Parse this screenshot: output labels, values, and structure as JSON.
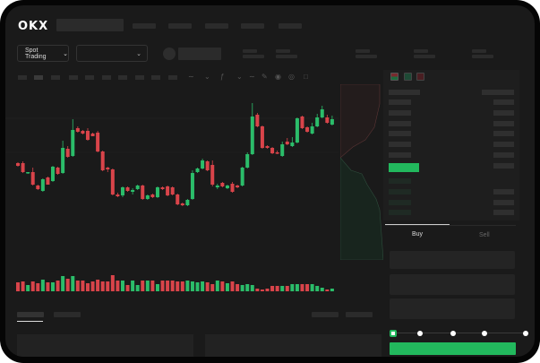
{
  "header": {
    "logo": "OKX"
  },
  "toolbar": {
    "market_select_label": "Spot Trading",
    "chevron": "chevron-down-icon"
  },
  "order_book": {
    "view_icons": [
      "orderbook-both-icon",
      "orderbook-bids-icon",
      "orderbook-asks-icon"
    ]
  },
  "trade_panel": {
    "tabs": [
      {
        "label": "Buy",
        "active": true
      },
      {
        "label": "Sell",
        "active": false
      }
    ],
    "slider_steps": 5,
    "slider_value": 0
  },
  "colors": {
    "up": "#2bbd6a",
    "down": "#d9444a",
    "accent": "#22b85d",
    "background": "#1a1a1a"
  },
  "chart_data": {
    "type": "candlestick",
    "candles": [
      [
        68,
        69,
        64,
        65
      ],
      [
        68,
        70,
        57,
        58
      ],
      [
        57,
        58,
        56,
        58
      ],
      [
        58,
        63,
        43,
        44
      ],
      [
        43,
        44,
        38,
        39
      ],
      [
        37,
        51,
        36,
        50
      ],
      [
        52,
        53,
        44,
        44
      ],
      [
        48,
        65,
        47,
        64
      ],
      [
        63,
        64,
        55,
        56
      ],
      [
        57,
        93,
        56,
        85
      ],
      [
        84,
        87,
        74,
        75
      ],
      [
        76,
        117,
        75,
        105
      ],
      [
        107,
        109,
        102,
        103
      ],
      [
        104,
        105,
        100,
        101
      ],
      [
        104,
        107,
        93,
        94
      ],
      [
        101,
        102,
        98,
        98
      ],
      [
        102,
        104,
        80,
        81
      ],
      [
        81,
        82,
        59,
        60
      ],
      [
        63,
        64,
        58,
        61
      ],
      [
        61,
        62,
        32,
        33
      ],
      [
        33,
        35,
        30,
        31
      ],
      [
        32,
        42,
        30,
        41
      ],
      [
        41,
        42,
        36,
        37
      ],
      [
        36,
        40,
        33,
        38
      ],
      [
        39,
        44,
        38,
        43
      ],
      [
        43,
        44,
        27,
        28
      ],
      [
        28,
        33,
        27,
        32
      ],
      [
        33,
        34,
        29,
        30
      ],
      [
        30,
        42,
        29,
        41
      ],
      [
        41,
        42,
        38,
        39
      ],
      [
        42,
        43,
        31,
        32
      ],
      [
        41,
        42,
        32,
        33
      ],
      [
        33,
        34,
        21,
        22
      ],
      [
        23,
        24,
        20,
        21
      ],
      [
        21,
        28,
        20,
        27
      ],
      [
        28,
        60,
        27,
        57
      ],
      [
        58,
        63,
        57,
        62
      ],
      [
        62,
        73,
        61,
        71
      ],
      [
        70,
        71,
        59,
        60
      ],
      [
        66,
        71,
        42,
        44
      ],
      [
        41,
        45,
        39,
        43
      ],
      [
        46,
        47,
        41,
        42
      ],
      [
        40,
        44,
        39,
        43
      ],
      [
        45,
        47,
        35,
        36
      ],
      [
        43,
        44,
        40,
        41
      ],
      [
        43,
        64,
        42,
        63
      ],
      [
        63,
        80,
        62,
        78
      ],
      [
        78,
        135,
        77,
        120
      ],
      [
        122,
        124,
        108,
        109
      ],
      [
        109,
        110,
        84,
        85
      ],
      [
        87,
        88,
        84,
        85
      ],
      [
        85,
        86,
        78,
        79
      ],
      [
        80,
        82,
        78,
        79
      ],
      [
        76,
        92,
        75,
        89
      ],
      [
        92,
        96,
        88,
        89
      ],
      [
        87,
        97,
        86,
        91
      ],
      [
        91,
        119,
        90,
        118
      ],
      [
        120,
        121,
        106,
        107
      ],
      [
        108,
        109,
        102,
        103
      ],
      [
        101,
        113,
        100,
        109
      ],
      [
        109,
        123,
        108,
        119
      ],
      [
        119,
        132,
        118,
        128
      ],
      [
        119,
        122,
        112,
        113
      ],
      [
        111,
        121,
        110,
        117
      ]
    ],
    "volume": [
      10,
      11,
      7,
      11,
      9,
      13,
      10,
      10,
      12,
      17,
      14,
      17,
      12,
      12,
      9,
      11,
      13,
      11,
      11,
      18,
      12,
      12,
      7,
      12,
      7,
      12,
      12,
      12,
      8,
      12,
      12,
      12,
      11,
      11,
      12,
      11,
      10,
      11,
      10,
      8,
      12,
      11,
      9,
      11,
      8,
      7,
      8,
      7,
      3,
      2,
      3,
      6,
      6,
      6,
      6,
      8,
      8,
      8,
      8,
      8,
      6,
      4,
      2,
      3
    ]
  }
}
